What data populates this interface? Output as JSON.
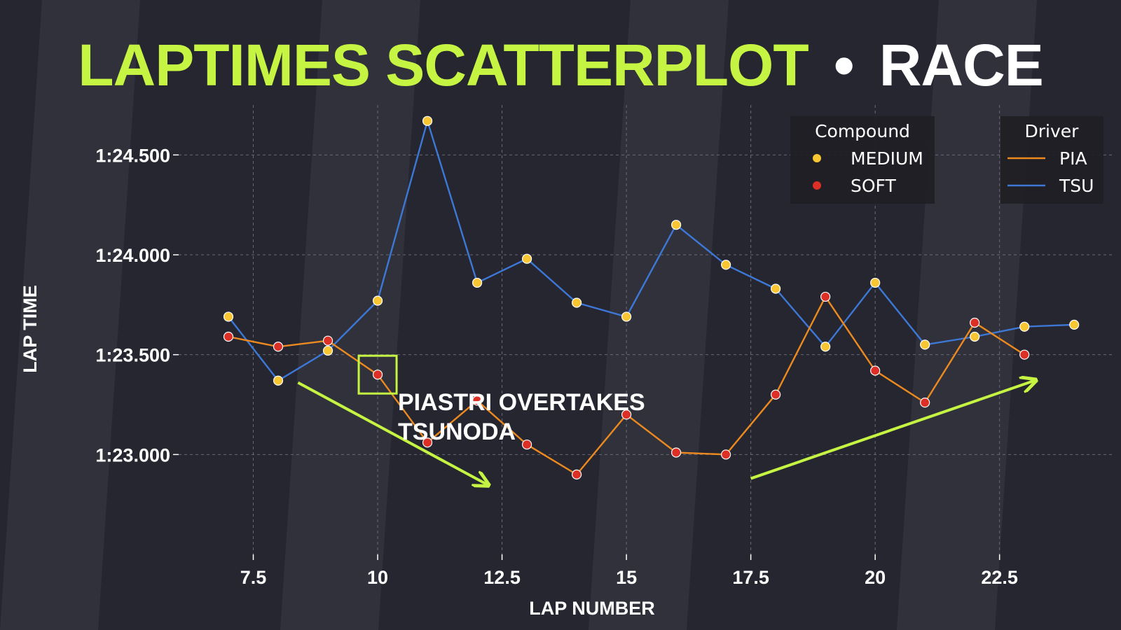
{
  "title": {
    "main": "LAPTIMES SCATTERPLOT",
    "separator": "•",
    "session": "RACE"
  },
  "colors": {
    "background": "#262631",
    "accent": "#c5f542",
    "title_session": "#ffffff",
    "pia": "#ec8a1f",
    "tsu": "#3d78d6",
    "medium": "#f7c632",
    "soft": "#dc2f26",
    "grid": "#6a6a74"
  },
  "chart_data": {
    "type": "scatter",
    "xlabel": "LAP NUMBER",
    "ylabel": "LAP TIME",
    "xlim": [
      6.0,
      24.8
    ],
    "ylim": [
      82.5,
      84.75
    ],
    "xticks": [
      7.5,
      10,
      12.5,
      15,
      17.5,
      20,
      22.5
    ],
    "xtick_labels": [
      "7.5",
      "10",
      "12.5",
      "15",
      "17.5",
      "20",
      "22.5"
    ],
    "yticks": [
      83.0,
      83.5,
      84.0,
      84.5
    ],
    "ytick_labels": [
      "1:23.000",
      "1:23.500",
      "1:24.000",
      "1:24.500"
    ],
    "grid": true,
    "series": [
      {
        "name": "PIA",
        "color_key": "pia",
        "points": [
          {
            "x": 7,
            "y": 83.59,
            "compound": "SOFT"
          },
          {
            "x": 8,
            "y": 83.54,
            "compound": "SOFT"
          },
          {
            "x": 9,
            "y": 83.57,
            "compound": "SOFT"
          },
          {
            "x": 10,
            "y": 83.4,
            "compound": "SOFT"
          },
          {
            "x": 11,
            "y": 83.06,
            "compound": "SOFT"
          },
          {
            "x": 12,
            "y": 83.27,
            "compound": "SOFT"
          },
          {
            "x": 13,
            "y": 83.05,
            "compound": "SOFT"
          },
          {
            "x": 14,
            "y": 82.9,
            "compound": "SOFT"
          },
          {
            "x": 15,
            "y": 83.2,
            "compound": "SOFT"
          },
          {
            "x": 16,
            "y": 83.01,
            "compound": "SOFT"
          },
          {
            "x": 17,
            "y": 83.0,
            "compound": "SOFT"
          },
          {
            "x": 18,
            "y": 83.3,
            "compound": "SOFT"
          },
          {
            "x": 19,
            "y": 83.79,
            "compound": "SOFT"
          },
          {
            "x": 20,
            "y": 83.42,
            "compound": "SOFT"
          },
          {
            "x": 21,
            "y": 83.26,
            "compound": "SOFT"
          },
          {
            "x": 22,
            "y": 83.66,
            "compound": "SOFT"
          },
          {
            "x": 23,
            "y": 83.5,
            "compound": "SOFT"
          }
        ]
      },
      {
        "name": "TSU",
        "color_key": "tsu",
        "points": [
          {
            "x": 7,
            "y": 83.69,
            "compound": "MEDIUM"
          },
          {
            "x": 8,
            "y": 83.37,
            "compound": "MEDIUM"
          },
          {
            "x": 9,
            "y": 83.52,
            "compound": "MEDIUM"
          },
          {
            "x": 10,
            "y": 83.77,
            "compound": "MEDIUM"
          },
          {
            "x": 11,
            "y": 84.67,
            "compound": "MEDIUM"
          },
          {
            "x": 12,
            "y": 83.86,
            "compound": "MEDIUM"
          },
          {
            "x": 13,
            "y": 83.98,
            "compound": "MEDIUM"
          },
          {
            "x": 14,
            "y": 83.76,
            "compound": "MEDIUM"
          },
          {
            "x": 15,
            "y": 83.69,
            "compound": "MEDIUM"
          },
          {
            "x": 16,
            "y": 84.15,
            "compound": "MEDIUM"
          },
          {
            "x": 17,
            "y": 83.95,
            "compound": "MEDIUM"
          },
          {
            "x": 18,
            "y": 83.83,
            "compound": "MEDIUM"
          },
          {
            "x": 19,
            "y": 83.54,
            "compound": "MEDIUM"
          },
          {
            "x": 20,
            "y": 83.86,
            "compound": "MEDIUM"
          },
          {
            "x": 21,
            "y": 83.55,
            "compound": "MEDIUM"
          },
          {
            "x": 22,
            "y": 83.59,
            "compound": "MEDIUM"
          },
          {
            "x": 23,
            "y": 83.64,
            "compound": "MEDIUM"
          },
          {
            "x": 24,
            "y": 83.65,
            "compound": "MEDIUM"
          }
        ]
      }
    ],
    "legends": [
      {
        "title": "Compound",
        "position": "top-right",
        "items": [
          {
            "label": "MEDIUM",
            "marker": "dot",
            "color_key": "medium"
          },
          {
            "label": "SOFT",
            "marker": "dot",
            "color_key": "soft"
          }
        ]
      },
      {
        "title": "Driver",
        "position": "top-right",
        "items": [
          {
            "label": "PIA",
            "marker": "line",
            "color_key": "pia"
          },
          {
            "label": "TSU",
            "marker": "line",
            "color_key": "tsu"
          }
        ]
      }
    ],
    "annotations": {
      "text_line1": "PIASTRI OVERTAKES",
      "text_line2": "TSUNODA",
      "highlight": {
        "x": 10,
        "y": 83.4
      },
      "arrows": [
        {
          "from": {
            "x": 8.4,
            "y": 83.36
          },
          "to": {
            "x": 12.2,
            "y": 82.85
          },
          "trend": "down"
        },
        {
          "from": {
            "x": 17.5,
            "y": 82.88
          },
          "to": {
            "x": 23.2,
            "y": 83.37
          },
          "trend": "up"
        }
      ]
    }
  }
}
